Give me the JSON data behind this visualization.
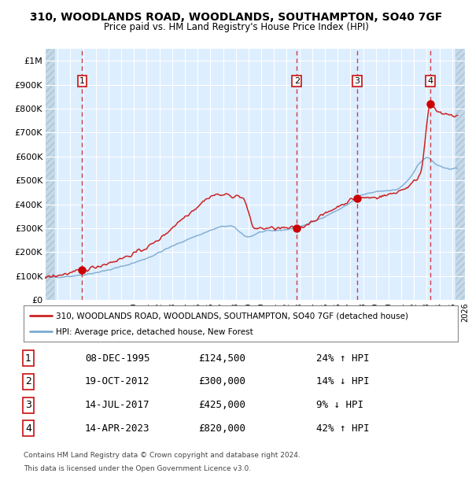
{
  "title": "310, WOODLANDS ROAD, WOODLANDS, SOUTHAMPTON, SO40 7GF",
  "subtitle": "Price paid vs. HM Land Registry's House Price Index (HPI)",
  "legend_line1": "310, WOODLANDS ROAD, WOODLANDS, SOUTHAMPTON, SO40 7GF (detached house)",
  "legend_line2": "HPI: Average price, detached house, New Forest",
  "footer1": "Contains HM Land Registry data © Crown copyright and database right 2024.",
  "footer2": "This data is licensed under the Open Government Licence v3.0.",
  "transactions": [
    {
      "label": "1",
      "date": "08-DEC-1995",
      "price": 124500,
      "pct": "24%",
      "dir": "↑",
      "x_year": 1995.93
    },
    {
      "label": "2",
      "date": "19-OCT-2012",
      "price": 300000,
      "pct": "14%",
      "dir": "↓",
      "x_year": 2012.79
    },
    {
      "label": "3",
      "date": "14-JUL-2017",
      "price": 425000,
      "pct": "9%",
      "dir": "↓",
      "x_year": 2017.53
    },
    {
      "label": "4",
      "date": "14-APR-2023",
      "price": 820000,
      "pct": "42%",
      "dir": "↑",
      "x_year": 2023.28
    }
  ],
  "hpi_color": "#7aaad0",
  "price_color": "#cc2222",
  "marker_color": "#cc0000",
  "vline_color": "#cc2222",
  "background_color": "#ddeeff",
  "grid_color": "#ffffff",
  "ylim": [
    0,
    1050000
  ],
  "xlim": [
    1993,
    2026
  ],
  "yticks": [
    0,
    100000,
    200000,
    300000,
    400000,
    500000,
    600000,
    700000,
    800000,
    900000,
    1000000
  ],
  "ytick_labels": [
    "£0",
    "£100K",
    "£200K",
    "£300K",
    "£400K",
    "£500K",
    "£600K",
    "£700K",
    "£800K",
    "£900K",
    "£1M"
  ],
  "hpi_anchors_x": [
    1993.0,
    1995.0,
    1997.0,
    1999.0,
    2001.0,
    2003.0,
    2005.0,
    2007.5,
    2009.0,
    2010.0,
    2011.0,
    2012.0,
    2013.5,
    2015.0,
    2016.5,
    2018.0,
    2019.5,
    2020.5,
    2021.5,
    2022.5,
    2023.0,
    2023.8,
    2024.5,
    2025.4
  ],
  "hpi_anchors_y": [
    95000,
    100000,
    115000,
    140000,
    175000,
    225000,
    270000,
    310000,
    265000,
    285000,
    290000,
    295000,
    315000,
    350000,
    390000,
    440000,
    455000,
    460000,
    500000,
    575000,
    595000,
    565000,
    550000,
    550000
  ],
  "price_anchors_x": [
    1993.0,
    1995.93,
    2001.0,
    2004.5,
    2006.5,
    2008.5,
    2009.5,
    2012.79,
    2014.0,
    2016.0,
    2017.53,
    2019.0,
    2021.0,
    2022.5,
    2023.28,
    2024.0,
    2025.4
  ],
  "price_anchors_y": [
    95000,
    124500,
    220000,
    370000,
    440000,
    430000,
    300000,
    300000,
    330000,
    390000,
    425000,
    430000,
    460000,
    530000,
    820000,
    780000,
    770000
  ]
}
